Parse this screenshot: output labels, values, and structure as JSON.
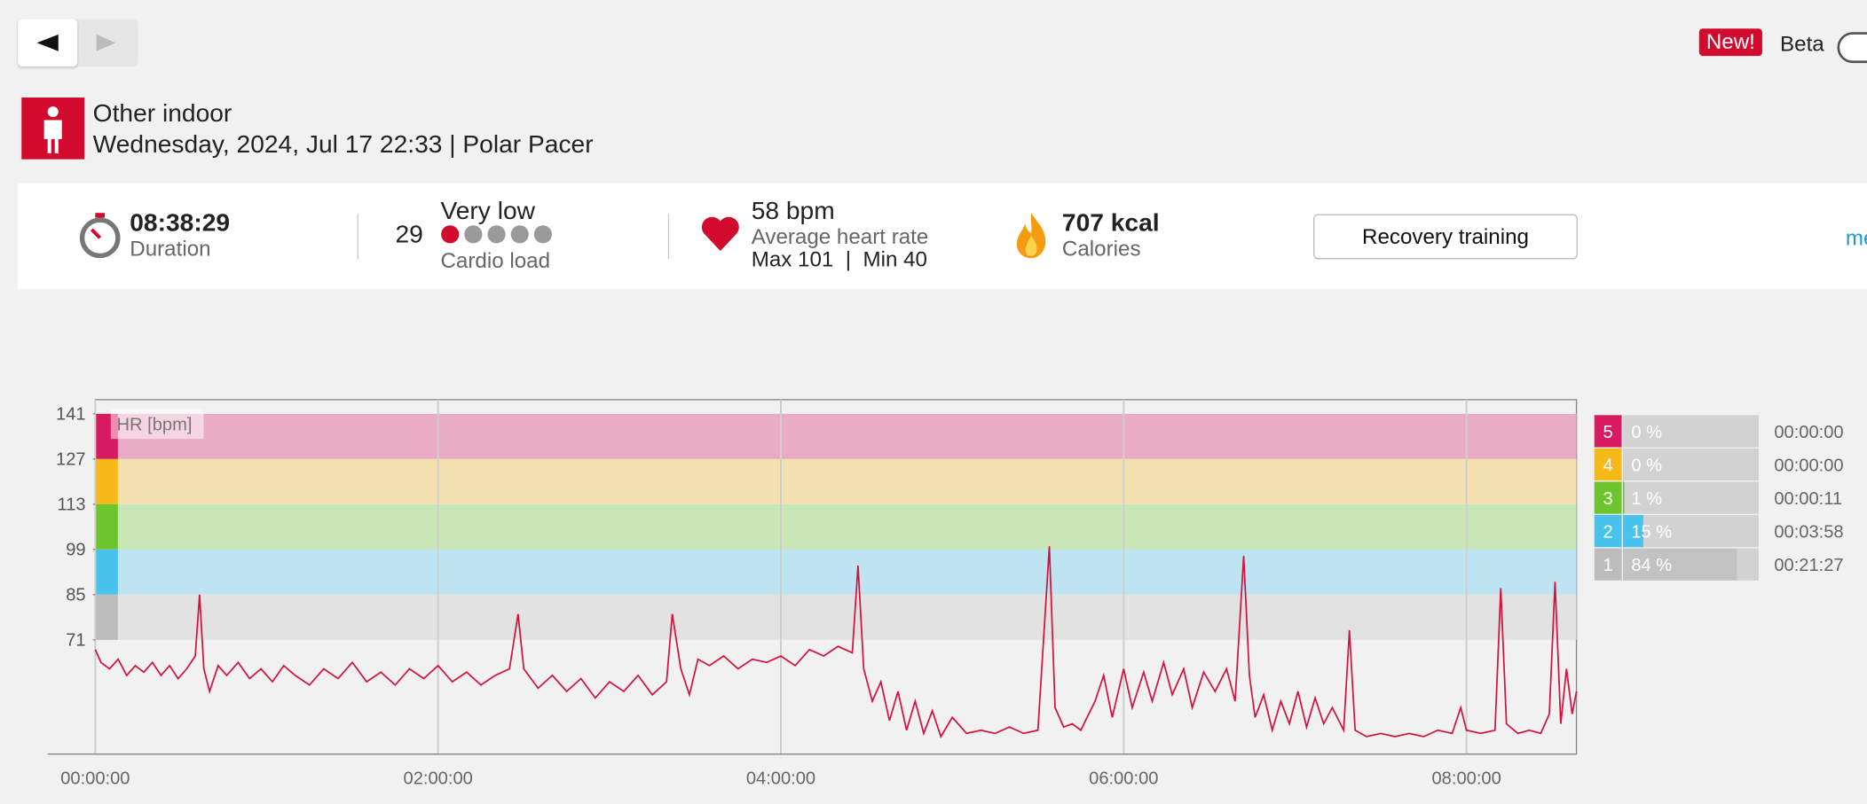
{
  "header": {
    "new_badge": "New!",
    "beta": "Beta",
    "activity": "Other indoor",
    "subtitle": "Wednesday, 2024, Jul 17 22:33 | Polar Pacer"
  },
  "summary": {
    "duration": "08:38:29",
    "duration_label": "Duration",
    "cardio_load": "29",
    "cardio_load_status": "Very low",
    "cardio_load_level": 1,
    "cardio_load_levels": 5,
    "cardio_load_label": "Cardio load",
    "avg_hr": "58 bpm",
    "avg_hr_label": "Average heart rate",
    "hr_range": "Max 101  |  Min 40",
    "calories": "707 kcal",
    "calories_label": "Calories",
    "benefit": "Recovery training",
    "more": "me"
  },
  "chart_data": {
    "type": "line",
    "series": [
      {
        "name": "HR [bpm]",
        "color": "#d2143f",
        "values": [
          68,
          64,
          62,
          65,
          60,
          63,
          61,
          64,
          60,
          63,
          59,
          62,
          66,
          85,
          62,
          55,
          63,
          60,
          64,
          59,
          62,
          58,
          63,
          60,
          57,
          62,
          59,
          64,
          58,
          61,
          57,
          62,
          59,
          63,
          58,
          61,
          57,
          60,
          62,
          79,
          62,
          56,
          60,
          55,
          59,
          53,
          58,
          55,
          60,
          54,
          58,
          79,
          62,
          54,
          65,
          63,
          66,
          62,
          65,
          64,
          66,
          63,
          68,
          66,
          69,
          67,
          94,
          62,
          52,
          58,
          46,
          55,
          43,
          52,
          42,
          49,
          41,
          47,
          42,
          43,
          42,
          44,
          42,
          43,
          100,
          50,
          44,
          45,
          43,
          52,
          60,
          47,
          62,
          50,
          61,
          52,
          64,
          54,
          62,
          50,
          61,
          55,
          62,
          52,
          97,
          60,
          47,
          54,
          43,
          52,
          45,
          55,
          44,
          53,
          45,
          50,
          43,
          74,
          43,
          41,
          42,
          41,
          42,
          41,
          43,
          42,
          50,
          43,
          42,
          43,
          87,
          45,
          42,
          43,
          42,
          48,
          89,
          45,
          62,
          48,
          55
        ]
      }
    ],
    "x": [
      0,
      2,
      5,
      8,
      11,
      14,
      17,
      20,
      23,
      26,
      29,
      32,
      35,
      36.5,
      38,
      40,
      43,
      46,
      50,
      54,
      58,
      62,
      66,
      70,
      75,
      80,
      85,
      90,
      95,
      100,
      105,
      110,
      115,
      120,
      125,
      130,
      135,
      140,
      145,
      148,
      150,
      155,
      160,
      165,
      170,
      175,
      180,
      185,
      190,
      195,
      200,
      202,
      205,
      208,
      211,
      215,
      220,
      225,
      230,
      235,
      240,
      245,
      250,
      255,
      260,
      265,
      267,
      269,
      272,
      275,
      278,
      281,
      284,
      287,
      290,
      293,
      296,
      300,
      305,
      310,
      315,
      320,
      325,
      330,
      334,
      336,
      339,
      342,
      345,
      350,
      353,
      356,
      360,
      363,
      367,
      370,
      374,
      377,
      381,
      384,
      388,
      392,
      396,
      399,
      402,
      404,
      406,
      409,
      412,
      415,
      418,
      421,
      424,
      427,
      430,
      433,
      437,
      439,
      441,
      445,
      450,
      455,
      460,
      465,
      470,
      475,
      478,
      480,
      485,
      490,
      492,
      494,
      498,
      502,
      506,
      509,
      511,
      513,
      515,
      517,
      518.5
    ],
    "xlim": [
      0,
      518.5
    ],
    "xticks": [
      {
        "value": 0,
        "label": "00:00:00"
      },
      {
        "value": 120,
        "label": "02:00:00"
      },
      {
        "value": 240,
        "label": "04:00:00"
      },
      {
        "value": 360,
        "label": "06:00:00"
      },
      {
        "value": 480,
        "label": "08:00:00"
      }
    ],
    "ylim": [
      35.6,
      145.4
    ],
    "yticks": [
      71,
      85,
      99,
      113,
      127,
      141
    ],
    "grid": true,
    "zones": [
      {
        "name": "5",
        "lower": 127,
        "upper": 141,
        "color": "#d81b60",
        "band": "#eaabc4",
        "percent": 0,
        "percent_label": "0 %",
        "time": "00:00:00"
      },
      {
        "name": "4",
        "lower": 113,
        "upper": 127,
        "color": "#f7b91a",
        "band": "#f3e1b1",
        "percent": 0,
        "percent_label": "0 %",
        "time": "00:00:00"
      },
      {
        "name": "3",
        "lower": 99,
        "upper": 113,
        "color": "#6cc52c",
        "band": "#c9e6b6",
        "percent": 1,
        "percent_label": "1 %",
        "time": "00:00:11"
      },
      {
        "name": "2",
        "lower": 85,
        "upper": 99,
        "color": "#48c3ee",
        "band": "#bee3f1",
        "percent": 15,
        "percent_label": "15 %",
        "time": "00:03:58"
      },
      {
        "name": "1",
        "lower": 71,
        "upper": 85,
        "color": "#bcbcbc",
        "band": "#e2e2e2",
        "percent": 84,
        "percent_label": "84 %",
        "time": "00:21:27"
      }
    ]
  }
}
